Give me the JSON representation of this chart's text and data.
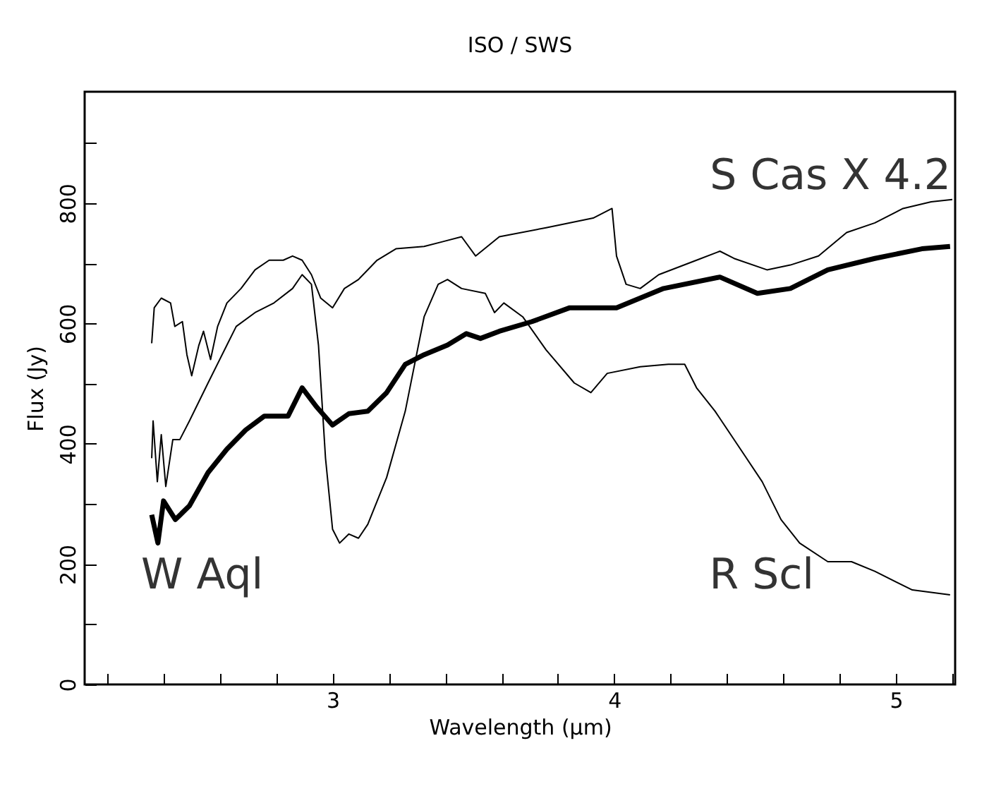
{
  "chart_data": {
    "type": "line",
    "title": "ISO / SWS",
    "xlabel": "Wavelength (μm)",
    "ylabel": "Flux (Jy)",
    "legend": false,
    "grid": false,
    "marker": "none",
    "line_style": "solid",
    "xlim": [
      2.12,
      5.21
    ],
    "ylim": [
      0,
      985
    ],
    "xticks": [
      {
        "value": 2.2,
        "label": null
      },
      {
        "value": 2.4,
        "label": null
      },
      {
        "value": 2.6,
        "label": null
      },
      {
        "value": 2.8,
        "label": null
      },
      3,
      {
        "value": 3.2,
        "label": null
      },
      {
        "value": 3.4,
        "label": null
      },
      {
        "value": 3.6,
        "label": null
      },
      {
        "value": 3.8,
        "label": null
      },
      4,
      {
        "value": 4.2,
        "label": null
      },
      {
        "value": 4.4,
        "label": null
      },
      {
        "value": 4.6,
        "label": null
      },
      {
        "value": 4.8,
        "label": null
      },
      5,
      {
        "value": 5.2,
        "label": null
      }
    ],
    "yticks": [
      0,
      {
        "value": 100,
        "label": null
      },
      200,
      {
        "value": 300,
        "label": null
      },
      400,
      {
        "value": 500,
        "label": null
      },
      600,
      {
        "value": 700,
        "label": null
      },
      800,
      {
        "value": 900,
        "label": null
      }
    ],
    "series": [
      {
        "name": "S Cas X 4.2",
        "color": "#000000",
        "x": [
          2.358,
          2.367,
          2.392,
          2.425,
          2.44,
          2.467,
          2.483,
          2.5,
          2.525,
          2.542,
          2.567,
          2.592,
          2.625,
          2.675,
          2.725,
          2.775,
          2.825,
          2.858,
          2.892,
          2.925,
          2.958,
          3.0,
          3.042,
          3.092,
          3.158,
          3.225,
          3.325,
          3.392,
          3.458,
          3.508,
          3.592,
          3.758,
          3.925,
          3.992,
          4.008,
          4.042,
          4.092,
          4.158,
          4.292,
          4.375,
          4.425,
          4.542,
          4.625,
          4.725,
          4.825,
          4.925,
          5.025,
          5.125,
          5.2
        ],
        "values": [
          567,
          626,
          642,
          634,
          595,
          603,
          548,
          513,
          563,
          587,
          540,
          595,
          634,
          658,
          689,
          705,
          705,
          712,
          705,
          681,
          642,
          626,
          658,
          673,
          705,
          724,
          728,
          736,
          744,
          712,
          744,
          759,
          775,
          791,
          712,
          665,
          658,
          681,
          705,
          720,
          708,
          689,
          697,
          712,
          751,
          767,
          791,
          802,
          806
        ]
      },
      {
        "name": "R Scl",
        "color": "#000000",
        "x": [
          2.358,
          2.363,
          2.378,
          2.392,
          2.408,
          2.433,
          2.458,
          2.492,
          2.558,
          2.625,
          2.658,
          2.725,
          2.792,
          2.858,
          2.892,
          2.925,
          2.95,
          2.975,
          3.0,
          3.025,
          3.058,
          3.092,
          3.125,
          3.192,
          3.258,
          3.325,
          3.375,
          3.408,
          3.458,
          3.542,
          3.575,
          3.608,
          3.675,
          3.758,
          3.858,
          3.917,
          3.975,
          4.092,
          4.192,
          4.25,
          4.292,
          4.358,
          4.458,
          4.525,
          4.592,
          4.658,
          4.758,
          4.842,
          4.925,
          5.058,
          5.192
        ],
        "values": [
          376,
          438,
          337,
          415,
          329,
          407,
          407,
          438,
          501,
          564,
          595,
          618,
          634,
          658,
          681,
          665,
          564,
          376,
          258,
          235,
          250,
          243,
          266,
          344,
          454,
          611,
          665,
          673,
          658,
          650,
          618,
          634,
          611,
          556,
          501,
          485,
          517,
          528,
          532,
          532,
          493,
          454,
          384,
          337,
          274,
          235,
          204,
          204,
          188,
          157,
          149
        ]
      },
      {
        "name": "W Aql",
        "color": "#000000",
        "x": [
          2.358,
          2.38,
          2.4,
          2.442,
          2.492,
          2.558,
          2.625,
          2.692,
          2.758,
          2.842,
          2.892,
          2.942,
          3.0,
          3.058,
          3.125,
          3.192,
          3.258,
          3.325,
          3.408,
          3.475,
          3.525,
          3.592,
          3.708,
          3.842,
          4.008,
          4.175,
          4.375,
          4.508,
          4.625,
          4.758,
          4.925,
          5.092,
          5.192
        ],
        "values": [
          282,
          235,
          305,
          274,
          297,
          352,
          391,
          423,
          446,
          446,
          493,
          462,
          431,
          450,
          454,
          485,
          532,
          548,
          564,
          583,
          575,
          587,
          603,
          626,
          626,
          658,
          677,
          650,
          658,
          689,
          708,
          724,
          728
        ]
      }
    ]
  }
}
